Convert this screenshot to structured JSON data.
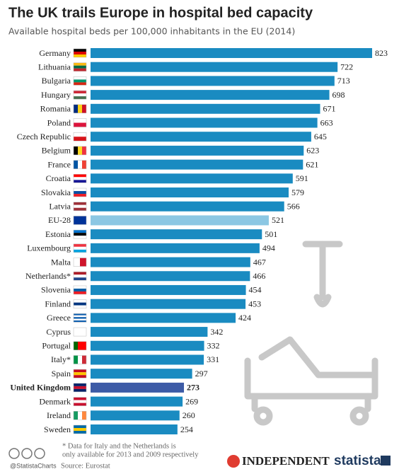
{
  "chart_data": {
    "type": "bar",
    "orientation": "horizontal",
    "title": "The UK trails Europe in hospital bed capacity",
    "subtitle": "Available hospital beds per 100,000 inhabitants in the EU (2014)",
    "categories": [
      "Germany",
      "Lithuania",
      "Bulgaria",
      "Hungary",
      "Romania",
      "Poland",
      "Czech Republic",
      "Belgium",
      "France",
      "Croatia",
      "Slovakia",
      "Latvia",
      "EU-28",
      "Estonia",
      "Luxembourg",
      "Malta",
      "Netherlands*",
      "Slovenia",
      "Finland",
      "Greece",
      "Cyprus",
      "Portugal",
      "Italy*",
      "Spain",
      "United Kingdom",
      "Denmark",
      "Ireland",
      "Sweden"
    ],
    "values": [
      823,
      722,
      713,
      698,
      671,
      663,
      645,
      623,
      621,
      591,
      579,
      566,
      521,
      501,
      494,
      467,
      466,
      454,
      453,
      424,
      342,
      332,
      331,
      297,
      273,
      269,
      260,
      254
    ],
    "colors": [
      "#1a8bc1",
      "#1a8bc1",
      "#1a8bc1",
      "#1a8bc1",
      "#1a8bc1",
      "#1a8bc1",
      "#1a8bc1",
      "#1a8bc1",
      "#1a8bc1",
      "#1a8bc1",
      "#1a8bc1",
      "#1a8bc1",
      "#8cc7e3",
      "#1a8bc1",
      "#1a8bc1",
      "#1a8bc1",
      "#1a8bc1",
      "#1a8bc1",
      "#1a8bc1",
      "#1a8bc1",
      "#1a8bc1",
      "#1a8bc1",
      "#1a8bc1",
      "#1a8bc1",
      "#3d5ba6",
      "#1a8bc1",
      "#1a8bc1",
      "#1a8bc1"
    ],
    "bold_rows": [
      24
    ],
    "note": [
      "* Data for Italy and the Netherlands is",
      "only available for 2013 and 2009 respectively"
    ],
    "handle": "@StatistaCharts",
    "source": "Source: Eurostat",
    "publisher": "INDEPENDENT",
    "brand": "statista"
  }
}
